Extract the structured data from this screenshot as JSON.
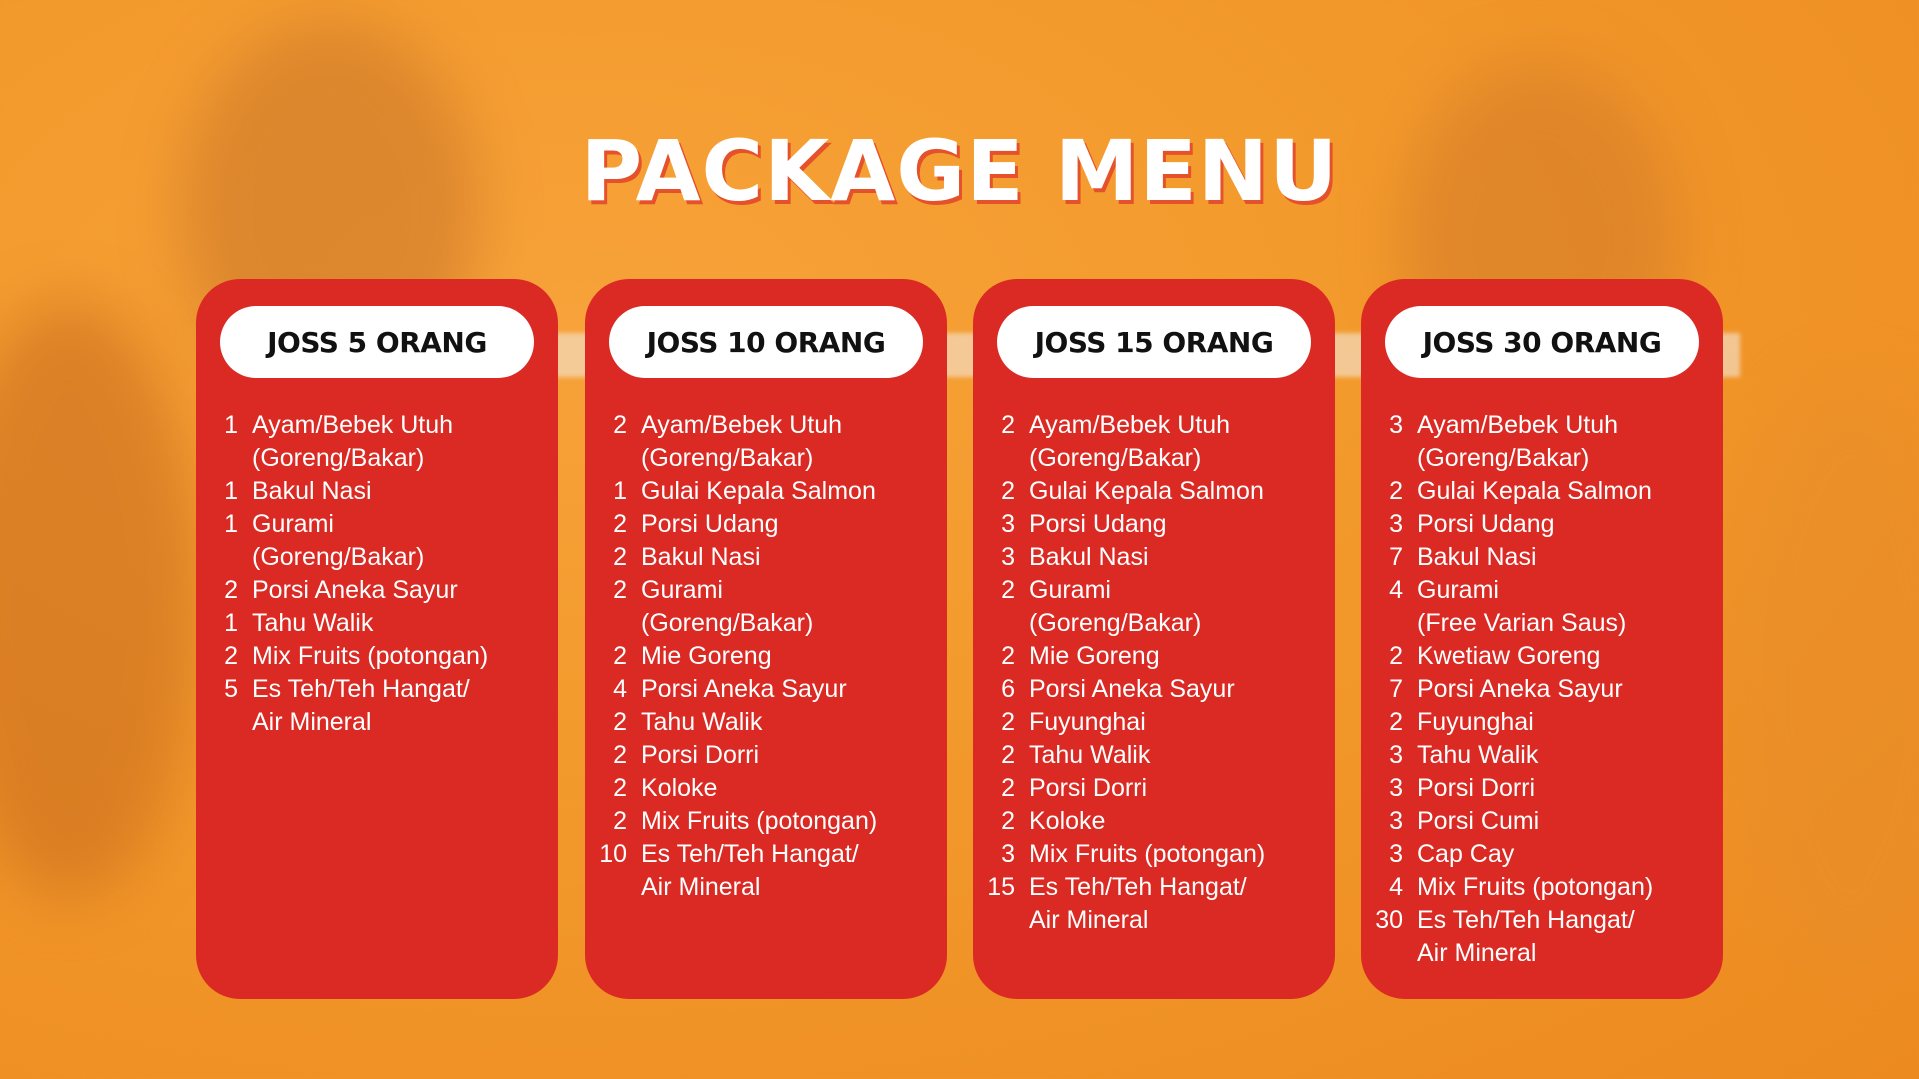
{
  "title": "PACKAGE MENU",
  "colors": {
    "card": "#da2a23",
    "background": "#f39a2c",
    "title_shadow": "#e4512a"
  },
  "packages": [
    {
      "name": "JOSS 5 ORANG",
      "items": [
        {
          "qty": "1",
          "lines": [
            "Ayam/Bebek Utuh",
            "(Goreng/Bakar)"
          ]
        },
        {
          "qty": "1",
          "lines": [
            "Bakul Nasi"
          ]
        },
        {
          "qty": "1",
          "lines": [
            "Gurami",
            "(Goreng/Bakar)"
          ]
        },
        {
          "qty": "2",
          "lines": [
            "Porsi Aneka Sayur"
          ]
        },
        {
          "qty": "1",
          "lines": [
            "Tahu Walik"
          ]
        },
        {
          "qty": "2",
          "lines": [
            "Mix Fruits (potongan)"
          ]
        },
        {
          "qty": "5",
          "lines": [
            "Es Teh/Teh Hangat/",
            "Air Mineral"
          ]
        }
      ]
    },
    {
      "name": "JOSS 10 ORANG",
      "items": [
        {
          "qty": "2",
          "lines": [
            "Ayam/Bebek Utuh",
            "(Goreng/Bakar)"
          ]
        },
        {
          "qty": "1",
          "lines": [
            "Gulai Kepala Salmon"
          ]
        },
        {
          "qty": "2",
          "lines": [
            "Porsi Udang"
          ]
        },
        {
          "qty": "2",
          "lines": [
            "Bakul Nasi"
          ]
        },
        {
          "qty": "2",
          "lines": [
            "Gurami",
            "(Goreng/Bakar)"
          ]
        },
        {
          "qty": "2",
          "lines": [
            "Mie Goreng"
          ]
        },
        {
          "qty": "4",
          "lines": [
            "Porsi Aneka Sayur"
          ]
        },
        {
          "qty": "2",
          "lines": [
            "Tahu Walik"
          ]
        },
        {
          "qty": "2",
          "lines": [
            "Porsi Dorri"
          ]
        },
        {
          "qty": "2",
          "lines": [
            "Koloke"
          ]
        },
        {
          "qty": "2",
          "lines": [
            "Mix Fruits (potongan)"
          ]
        },
        {
          "qty": "10",
          "lines": [
            "Es Teh/Teh Hangat/",
            "Air Mineral"
          ]
        }
      ]
    },
    {
      "name": "JOSS 15 ORANG",
      "items": [
        {
          "qty": "2",
          "lines": [
            "Ayam/Bebek Utuh",
            "(Goreng/Bakar)"
          ]
        },
        {
          "qty": "2",
          "lines": [
            "Gulai Kepala Salmon"
          ]
        },
        {
          "qty": "3",
          "lines": [
            "Porsi Udang"
          ]
        },
        {
          "qty": "3",
          "lines": [
            "Bakul Nasi"
          ]
        },
        {
          "qty": "2",
          "lines": [
            "Gurami",
            "(Goreng/Bakar)"
          ]
        },
        {
          "qty": "2",
          "lines": [
            "Mie Goreng"
          ]
        },
        {
          "qty": "6",
          "lines": [
            "Porsi Aneka Sayur"
          ]
        },
        {
          "qty": "2",
          "lines": [
            "Fuyunghai"
          ]
        },
        {
          "qty": "2",
          "lines": [
            "Tahu Walik"
          ]
        },
        {
          "qty": "2",
          "lines": [
            "Porsi Dorri"
          ]
        },
        {
          "qty": "2",
          "lines": [
            "Koloke"
          ]
        },
        {
          "qty": "3",
          "lines": [
            "Mix Fruits (potongan)"
          ]
        },
        {
          "qty": "15",
          "lines": [
            "Es Teh/Teh Hangat/",
            "Air Mineral"
          ]
        }
      ]
    },
    {
      "name": "JOSS 30 ORANG",
      "items": [
        {
          "qty": "3",
          "lines": [
            "Ayam/Bebek Utuh",
            "(Goreng/Bakar)"
          ]
        },
        {
          "qty": "2",
          "lines": [
            "Gulai Kepala Salmon"
          ]
        },
        {
          "qty": "3",
          "lines": [
            "Porsi Udang"
          ]
        },
        {
          "qty": "7",
          "lines": [
            "Bakul Nasi"
          ]
        },
        {
          "qty": "4",
          "lines": [
            "Gurami",
            "(Free Varian Saus)"
          ]
        },
        {
          "qty": "2",
          "lines": [
            "Kwetiaw Goreng"
          ]
        },
        {
          "qty": "7",
          "lines": [
            "Porsi Aneka Sayur"
          ]
        },
        {
          "qty": "2",
          "lines": [
            "Fuyunghai"
          ]
        },
        {
          "qty": "3",
          "lines": [
            "Tahu Walik"
          ]
        },
        {
          "qty": "3",
          "lines": [
            "Porsi Dorri"
          ]
        },
        {
          "qty": "3",
          "lines": [
            "Porsi Cumi"
          ]
        },
        {
          "qty": "3",
          "lines": [
            "Cap Cay"
          ]
        },
        {
          "qty": "4",
          "lines": [
            "Mix Fruits (potongan)"
          ]
        },
        {
          "qty": "30",
          "lines": [
            "Es Teh/Teh Hangat/",
            "Air Mineral"
          ]
        }
      ]
    }
  ]
}
